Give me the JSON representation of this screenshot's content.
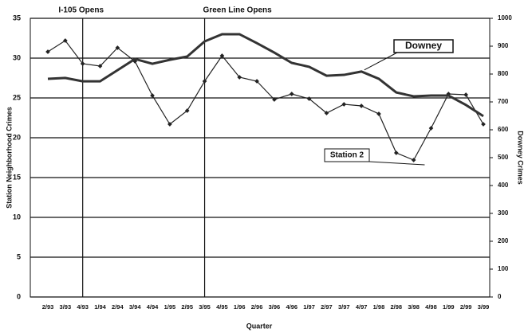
{
  "chart_data": {
    "type": "line",
    "x_label": "Quarter",
    "y_label": "Station Neighborhood Crimes",
    "y2_label": "Downey Crimes",
    "categories": [
      "2/93",
      "3/93",
      "4/93",
      "1/94",
      "2/94",
      "3/94",
      "4/94",
      "1/95",
      "2/95",
      "3/95",
      "4/95",
      "1/96",
      "2/96",
      "3/96",
      "4/96",
      "1/97",
      "2/97",
      "3/97",
      "4/97",
      "1/98",
      "2/98",
      "3/98",
      "4/98",
      "1/99",
      "2/99",
      "3/99"
    ],
    "series": [
      {
        "name": "Station 2",
        "color": "#222222",
        "axis": "y",
        "values": [
          30.8,
          32.2,
          29.3,
          29.0,
          31.3,
          29.6,
          25.3,
          21.7,
          23.4,
          27.1,
          30.3,
          27.6,
          27.1,
          24.8,
          25.5,
          24.9,
          23.1,
          24.2,
          24.0,
          23.0,
          18.1,
          17.2,
          21.2,
          25.5,
          25.4,
          21.7
        ]
      },
      {
        "name": "Downey",
        "color": "#333333",
        "axis": "y2",
        "values": [
          783,
          786,
          774,
          774,
          814,
          854,
          837,
          851,
          863,
          917,
          943,
          943,
          911,
          877,
          840,
          826,
          794,
          797,
          809,
          783,
          734,
          720,
          723,
          723,
          689,
          649
        ]
      }
    ],
    "ylim": [
      0,
      35
    ],
    "yticks": [
      0,
      5,
      10,
      15,
      20,
      25,
      30,
      35
    ],
    "y2lim": [
      0,
      1000
    ],
    "y2ticks": [
      0,
      100,
      200,
      300,
      400,
      500,
      600,
      700,
      800,
      900,
      1000
    ],
    "grid": true,
    "annotations": [
      {
        "text": "I-105 Opens",
        "category": "4/93"
      },
      {
        "text": "Green Line Opens",
        "category": "3/95"
      }
    ]
  }
}
